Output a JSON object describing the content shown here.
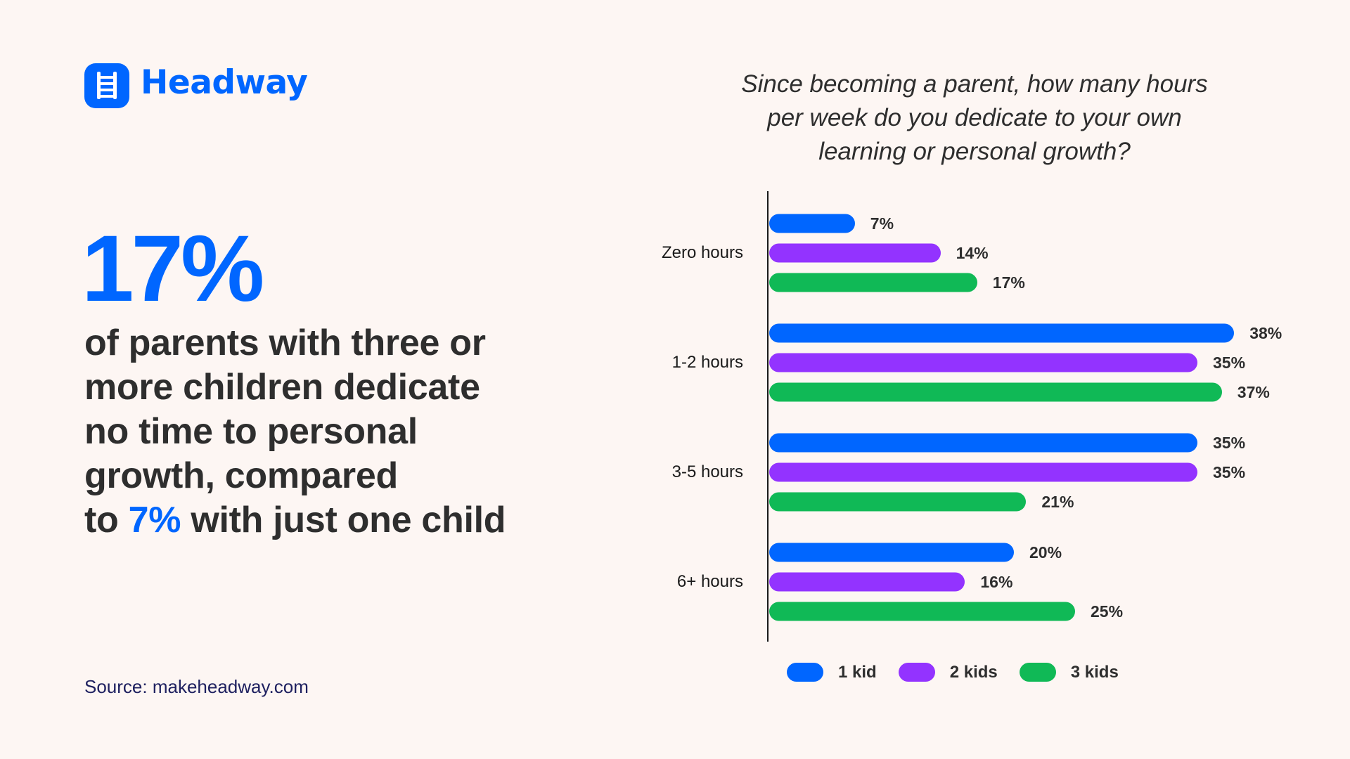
{
  "brand": {
    "name": "Headway",
    "icon": "ladder-icon",
    "color": "#0066ff"
  },
  "headline": {
    "stat_value": "17%",
    "text_lines": [
      "of parents with three or",
      "more children dedicate",
      "no time to personal",
      "growth, compared"
    ],
    "last_line_prefix": "to ",
    "last_line_highlight": "7%",
    "last_line_suffix": " with just one child",
    "accent_color": "#0066ff",
    "text_color": "#2e2e2e"
  },
  "source": "Source: makeheadway.com",
  "chart_data": {
    "type": "bar",
    "orientation": "horizontal",
    "title": "Since becoming a parent, how many hours per week do you dedicate to your own learning or personal growth?",
    "title_lines": [
      "Since becoming a parent, how many hours",
      "per week do you dedicate to your own",
      "learning or personal growth?"
    ],
    "categories": [
      "Zero hours",
      "1-2 hours",
      "3-5 hours",
      "6+ hours"
    ],
    "series": [
      {
        "name": "1 kid",
        "color": "#0066ff",
        "values": [
          7,
          38,
          35,
          20
        ]
      },
      {
        "name": "2 kids",
        "color": "#9333ff",
        "values": [
          14,
          35,
          35,
          16
        ]
      },
      {
        "name": "3 kids",
        "color": "#10b956",
        "values": [
          17,
          37,
          21,
          25
        ]
      }
    ],
    "value_suffix": "%",
    "xlabel": "",
    "ylabel": "",
    "xlim": [
      0,
      40
    ],
    "grid": false,
    "legend_position": "bottom"
  }
}
